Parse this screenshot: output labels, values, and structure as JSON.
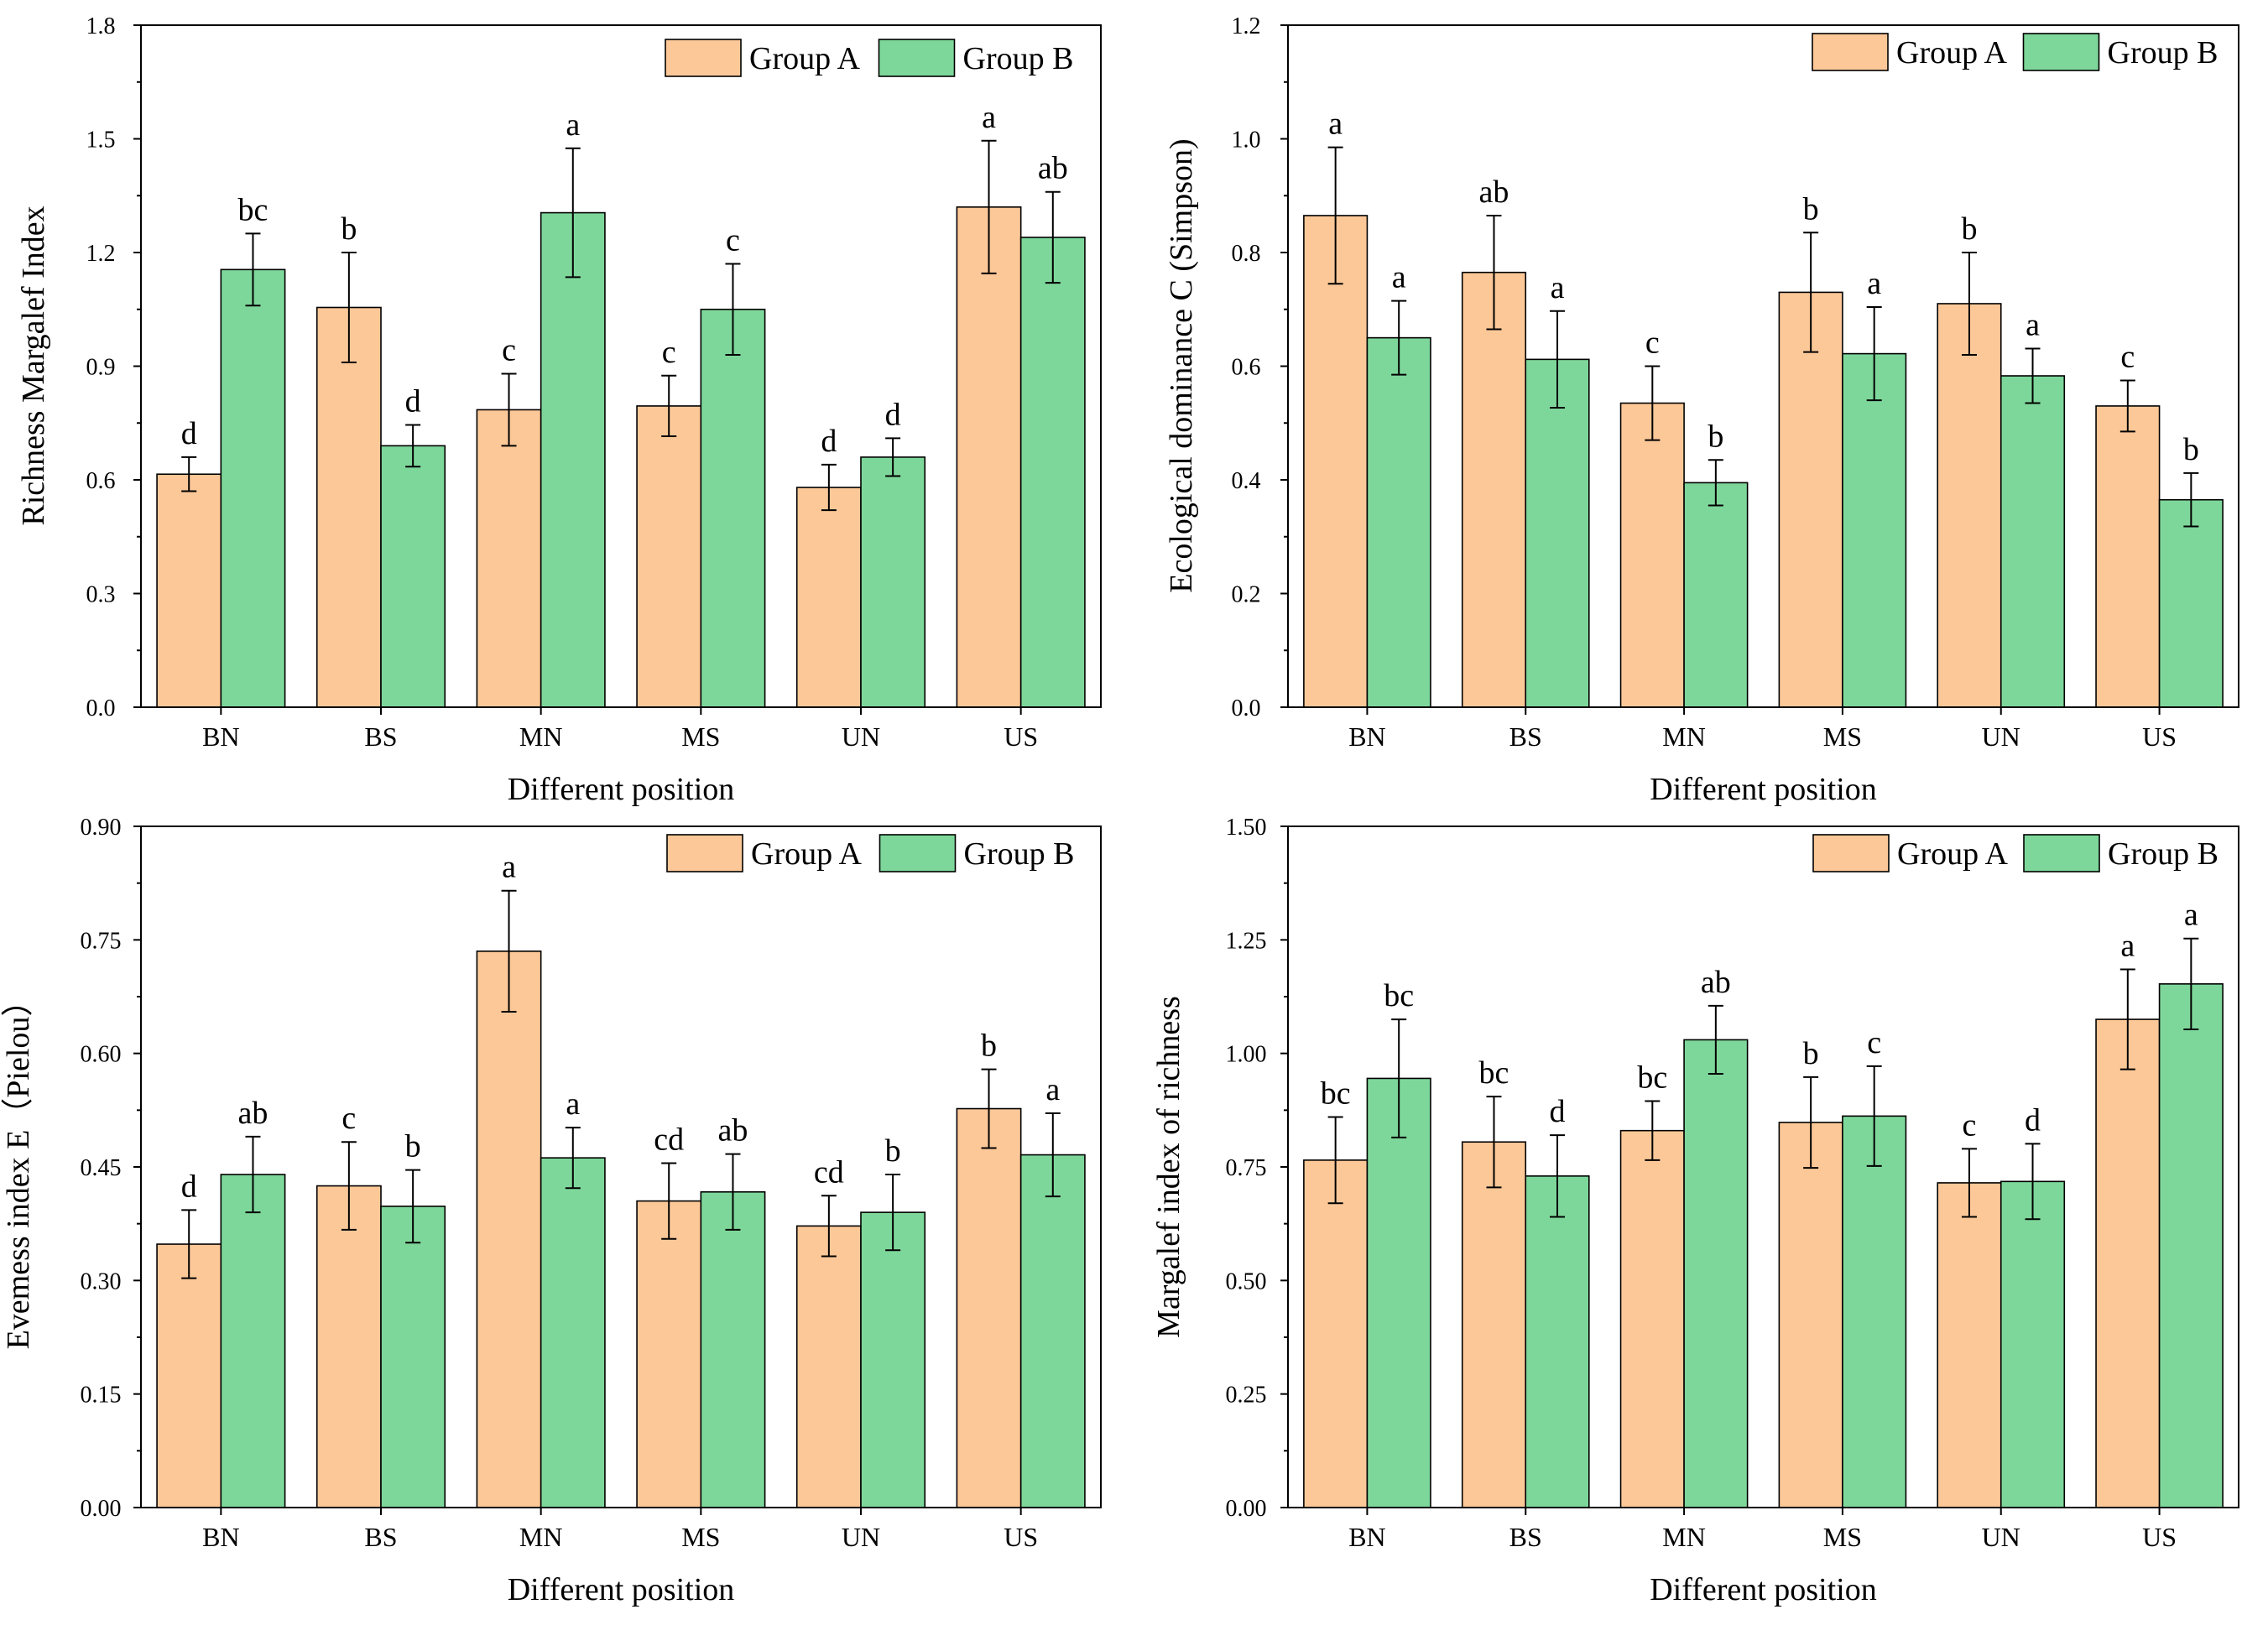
{
  "legend": {
    "group_a": "Group A",
    "group_b": "Group B"
  },
  "colors": {
    "group_a": "#FCC898",
    "group_b": "#7ED79A",
    "stroke": "#000000"
  },
  "chart_data": [
    {
      "type": "bar",
      "ylabel": "Richness Margalef Index",
      "xlabel": "Different position",
      "categories": [
        "BN",
        "BS",
        "MN",
        "MS",
        "UN",
        "US"
      ],
      "ylim": [
        0,
        1.8
      ],
      "yticks": [
        "0.0",
        "0.3",
        "0.6",
        "0.9",
        "1.2",
        "1.5",
        "1.8"
      ],
      "legend_position": "top-right",
      "series": [
        {
          "name": "Group A",
          "values": [
            0.615,
            1.055,
            0.785,
            0.795,
            0.58,
            1.32
          ],
          "errors": [
            0.045,
            0.145,
            0.095,
            0.08,
            0.06,
            0.175
          ],
          "labels": [
            "d",
            "b",
            "c",
            "c",
            "d",
            "a"
          ]
        },
        {
          "name": "Group B",
          "values": [
            1.155,
            0.69,
            1.305,
            1.05,
            0.66,
            1.24
          ],
          "errors": [
            0.095,
            0.055,
            0.17,
            0.12,
            0.05,
            0.12
          ],
          "labels": [
            "bc",
            "d",
            "a",
            "c",
            "d",
            "ab"
          ]
        }
      ]
    },
    {
      "type": "bar",
      "ylabel": "Ecological dominance C (Simpson)",
      "xlabel": "Different position",
      "categories": [
        "BN",
        "BS",
        "MN",
        "MS",
        "UN",
        "US"
      ],
      "ylim": [
        0,
        1.2
      ],
      "yticks": [
        "0.0",
        "0.2",
        "0.4",
        "0.6",
        "0.8",
        "1.0",
        "1.2"
      ],
      "legend_position": "top-right",
      "series": [
        {
          "name": "Group A",
          "values": [
            0.865,
            0.765,
            0.535,
            0.73,
            0.71,
            0.53
          ],
          "errors": [
            0.12,
            0.1,
            0.065,
            0.105,
            0.09,
            0.045
          ],
          "labels": [
            "a",
            "ab",
            "c",
            "b",
            "b",
            "c"
          ]
        },
        {
          "name": "Group B",
          "values": [
            0.65,
            0.612,
            0.395,
            0.622,
            0.583,
            0.365
          ],
          "errors": [
            0.065,
            0.085,
            0.04,
            0.082,
            0.048,
            0.047
          ],
          "labels": [
            "a",
            "a",
            "b",
            "a",
            "a",
            "b"
          ]
        }
      ]
    },
    {
      "type": "bar",
      "ylabel": "Evemess index E（Pielou）",
      "xlabel": "Different position",
      "categories": [
        "BN",
        "BS",
        "MN",
        "MS",
        "UN",
        "US"
      ],
      "ylim": [
        0,
        0.9
      ],
      "yticks": [
        "0.00",
        "0.15",
        "0.30",
        "0.45",
        "0.60",
        "0.75",
        "0.90"
      ],
      "legend_position": "top-right",
      "series": [
        {
          "name": "Group A",
          "values": [
            0.348,
            0.425,
            0.735,
            0.405,
            0.372,
            0.527
          ],
          "errors": [
            0.045,
            0.058,
            0.08,
            0.05,
            0.04,
            0.052
          ],
          "labels": [
            "d",
            "c",
            "a",
            "cd",
            "cd",
            "b"
          ]
        },
        {
          "name": "Group B",
          "values": [
            0.44,
            0.398,
            0.462,
            0.417,
            0.39,
            0.466
          ],
          "errors": [
            0.05,
            0.048,
            0.04,
            0.05,
            0.05,
            0.055
          ],
          "labels": [
            "ab",
            "b",
            "a",
            "ab",
            "b",
            "a"
          ]
        }
      ]
    },
    {
      "type": "bar",
      "ylabel": "Margalef index of richness",
      "xlabel": "Different position",
      "categories": [
        "BN",
        "BS",
        "MN",
        "MS",
        "UN",
        "US"
      ],
      "ylim": [
        0,
        1.5
      ],
      "yticks": [
        "0.00",
        "0.25",
        "0.50",
        "0.75",
        "1.00",
        "1.25",
        "1.50"
      ],
      "legend_position": "top-right",
      "series": [
        {
          "name": "Group A",
          "values": [
            0.765,
            0.805,
            0.83,
            0.848,
            0.715,
            1.075
          ],
          "errors": [
            0.095,
            0.1,
            0.065,
            0.1,
            0.075,
            0.11
          ],
          "labels": [
            "bc",
            "bc",
            "bc",
            "b",
            "c",
            "a"
          ]
        },
        {
          "name": "Group B",
          "values": [
            0.945,
            0.73,
            1.03,
            0.862,
            0.718,
            1.153
          ],
          "errors": [
            0.13,
            0.09,
            0.075,
            0.11,
            0.083,
            0.1
          ],
          "labels": [
            "bc",
            "d",
            "ab",
            "c",
            "d",
            "a"
          ]
        }
      ]
    }
  ]
}
